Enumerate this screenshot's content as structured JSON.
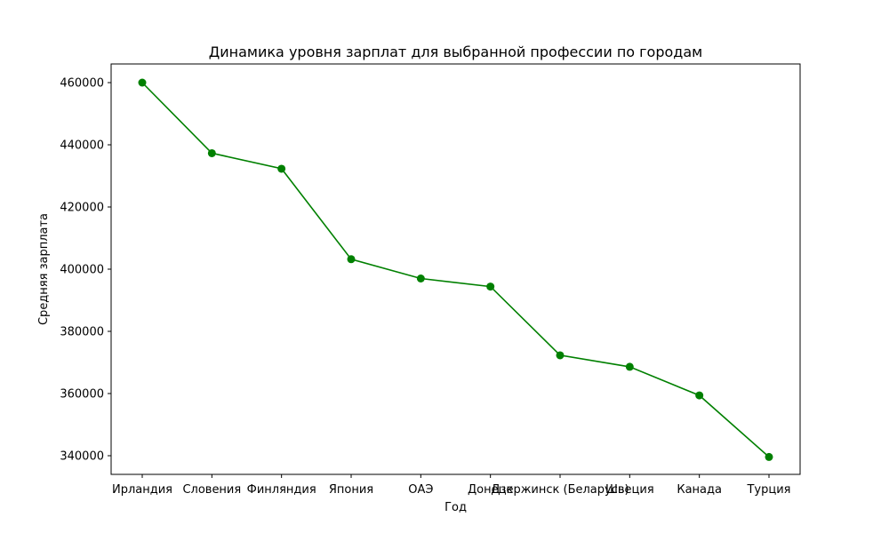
{
  "chart_data": {
    "type": "line",
    "title": "Динамика уровня зарплат для выбранной профессии по городам",
    "xlabel": "Год",
    "ylabel": "Средняя зарплата",
    "categories": [
      "Ирландия",
      "Словения",
      "Финляндия",
      "Япония",
      "ОАЭ",
      "Донецк",
      "Дзержинск (Беларусь)",
      "Швеция",
      "Канада",
      "Турция"
    ],
    "values": [
      460000,
      437300,
      432300,
      403200,
      397000,
      394400,
      372300,
      368600,
      359400,
      339600
    ],
    "yticks": [
      340000,
      360000,
      380000,
      400000,
      420000,
      440000,
      460000
    ],
    "ylim": [
      334000,
      466000
    ],
    "grid": false,
    "line_color": "#008000",
    "marker": "circle"
  }
}
